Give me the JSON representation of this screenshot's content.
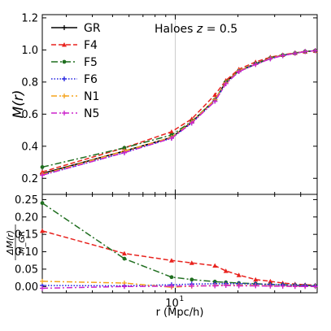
{
  "chart_data": [
    {
      "type": "line",
      "panel": "top",
      "annotation": "Haloes z = 0.5",
      "annotation_prefix": "Haloes ",
      "annotation_var": "z",
      "annotation_suffix": " = 0.5",
      "ylabel": "M(r)",
      "xscale": "log",
      "xlim": [
        2.3,
        48
      ],
      "ylim": [
        0.1,
        1.22
      ],
      "yticks": [
        0.2,
        0.4,
        0.6,
        0.8,
        1.0,
        1.2
      ],
      "ytick_labels": [
        "0.2",
        "0.4",
        "0.6",
        "0.8",
        "1.0",
        "1.2"
      ],
      "grid": "line at x = 10 only",
      "legend_position": "upper-left",
      "x": [
        2.3,
        5.7,
        9.6,
        12.0,
        15.5,
        17.5,
        20.2,
        24.3,
        28.6,
        32.8,
        37.6,
        42.0,
        47.0
      ],
      "series": [
        {
          "name": "GR",
          "color": "#000000",
          "dash": "",
          "marker": "plus",
          "values": [
            0.23,
            0.37,
            0.455,
            0.55,
            0.69,
            0.8,
            0.87,
            0.91,
            0.95,
            0.966,
            0.98,
            0.99,
            0.995
          ]
        },
        {
          "name": "F4",
          "color": "#e8231e",
          "dash": "6,3",
          "marker": "triangle",
          "values": [
            0.24,
            0.39,
            0.49,
            0.57,
            0.72,
            0.81,
            0.88,
            0.925,
            0.955,
            0.97,
            0.982,
            0.99,
            0.995
          ]
        },
        {
          "name": "F5",
          "color": "#1f6e1f",
          "dash": "8,3,2,3",
          "marker": "circle",
          "values": [
            0.27,
            0.39,
            0.47,
            0.555,
            0.69,
            0.8,
            0.87,
            0.915,
            0.95,
            0.968,
            0.98,
            0.99,
            0.995
          ]
        },
        {
          "name": "F6",
          "color": "#2020e0",
          "dash": "1.5,2",
          "marker": "plus",
          "values": [
            0.22,
            0.36,
            0.45,
            0.545,
            0.68,
            0.79,
            0.865,
            0.91,
            0.945,
            0.965,
            0.979,
            0.99,
            0.995
          ]
        },
        {
          "name": "N1",
          "color": "#f5a31c",
          "dash": "7,3,2,3",
          "marker": "plus",
          "values": [
            0.225,
            0.37,
            0.455,
            0.55,
            0.69,
            0.795,
            0.87,
            0.91,
            0.948,
            0.966,
            0.98,
            0.99,
            0.995
          ]
        },
        {
          "name": "N5",
          "color": "#cc22cc",
          "dash": "7,3,2,3",
          "marker": "plus",
          "values": [
            0.22,
            0.36,
            0.45,
            0.545,
            0.68,
            0.79,
            0.865,
            0.91,
            0.945,
            0.965,
            0.979,
            0.99,
            0.995
          ]
        }
      ]
    },
    {
      "type": "line",
      "panel": "bottom",
      "xlabel": "r (Mpc/h)",
      "ylabel_top": "ΔM(r)",
      "ylabel_bottom": "M_GR",
      "xscale": "log",
      "xlim": [
        2.3,
        48
      ],
      "ylim": [
        -0.018,
        0.265
      ],
      "yticks": [
        0.0,
        0.05,
        0.1,
        0.15,
        0.2,
        0.25
      ],
      "ytick_labels": [
        "0.00",
        "0.05",
        "0.10",
        "0.15",
        "0.20",
        "0.25"
      ],
      "xtick_major_label": "10",
      "xtick_major_exponent": "1",
      "x": [
        2.3,
        5.7,
        9.6,
        12.0,
        15.5,
        17.5,
        20.2,
        24.3,
        28.6,
        32.8,
        37.6,
        42.0,
        47.0
      ],
      "series": [
        {
          "name": "F4",
          "color": "#e8231e",
          "dash": "6,3",
          "marker": "triangle",
          "values": [
            0.16,
            0.095,
            0.075,
            0.068,
            0.06,
            0.045,
            0.033,
            0.02,
            0.015,
            0.01,
            0.007,
            0.005,
            0.004
          ]
        },
        {
          "name": "F5",
          "color": "#1f6e1f",
          "dash": "8,3,2,3",
          "marker": "circle",
          "values": [
            0.24,
            0.08,
            0.027,
            0.02,
            0.014,
            0.012,
            0.01,
            0.008,
            0.006,
            0.005,
            0.004,
            0.003,
            0.002
          ]
        },
        {
          "name": "F6",
          "color": "#2020e0",
          "dash": "1.5,2",
          "marker": "plus",
          "values": [
            0.003,
            0.002,
            0.005,
            0.007,
            0.008,
            0.008,
            0.008,
            0.007,
            0.006,
            0.005,
            0.004,
            0.003,
            0.002
          ]
        },
        {
          "name": "N1",
          "color": "#f5a31c",
          "dash": "7,3,2,3",
          "marker": "plus",
          "values": [
            0.015,
            0.01,
            -0.002,
            0.001,
            0.003,
            0.004,
            0.004,
            0.003,
            0.002,
            0.001,
            0.001,
            0.0,
            0.0
          ]
        },
        {
          "name": "N5",
          "color": "#cc22cc",
          "dash": "7,3,2,3",
          "marker": "plus",
          "values": [
            -0.005,
            0.0,
            0.001,
            0.002,
            0.002,
            0.003,
            0.002,
            0.002,
            0.001,
            0.001,
            0.0,
            0.0,
            0.0
          ]
        }
      ]
    }
  ]
}
